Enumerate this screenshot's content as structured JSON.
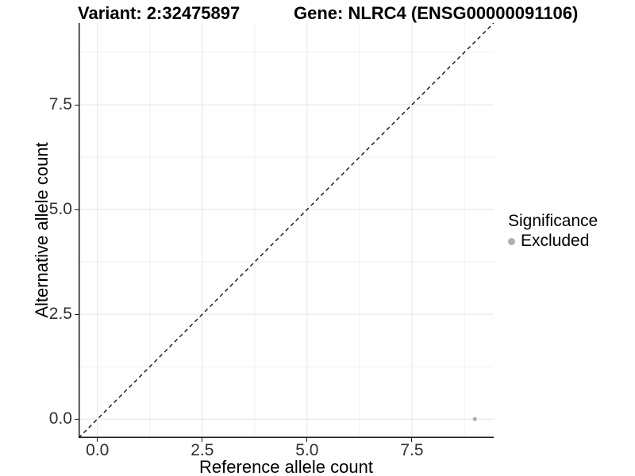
{
  "header": {
    "title_left": "Variant: 2:32475897",
    "title_right": "Gene: NLRC4 (ENSG00000091106)"
  },
  "chart_data": {
    "type": "scatter",
    "xlabel": "Reference allele count",
    "ylabel": "Alternative allele count",
    "xlim": [
      -0.45,
      9.45
    ],
    "ylim": [
      -0.45,
      9.45
    ],
    "x_ticks": {
      "values": [
        0,
        2.5,
        5,
        7.5
      ],
      "labels": [
        "0.0",
        "2.5",
        "5.0",
        "7.5"
      ]
    },
    "y_ticks": {
      "values": [
        0,
        2.5,
        5,
        7.5
      ],
      "labels": [
        "0.0",
        "2.5",
        "5.0",
        "7.5"
      ]
    },
    "minor_tick_values": [
      1.25,
      3.75,
      6.25,
      8.75
    ],
    "grid": {
      "on": true,
      "major_color": "#e4e4e4",
      "minor_color": "#efefef"
    },
    "axis_line_color": "#1a1a1a",
    "reference_line": {
      "style": "dashed",
      "slope": 1,
      "intercept": 0,
      "color": "#111111"
    },
    "series": [
      {
        "name": "Excluded",
        "color": "#b0b0b0",
        "point_radius": 2.6,
        "points": [
          {
            "x": 9,
            "y": 0
          }
        ]
      }
    ],
    "legend": {
      "title": "Significance",
      "position": "right",
      "items": [
        {
          "label": "Excluded",
          "color": "#b0b0b0"
        }
      ]
    }
  }
}
